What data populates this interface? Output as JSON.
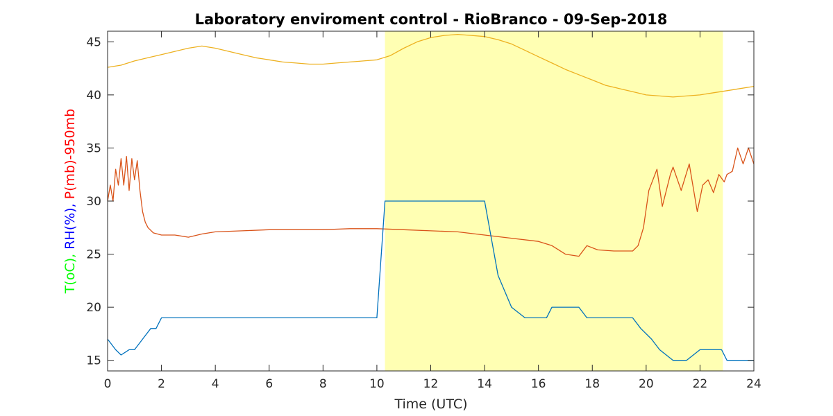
{
  "chart_data": {
    "type": "line",
    "title": "Laboratory enviroment control - RioBranco - 09-Sep-2018",
    "xlabel": "Time (UTC)",
    "ylabel_parts": [
      {
        "text": "T(oC), ",
        "color": "#00ff00"
      },
      {
        "text": "RH(%), ",
        "color": "#0000ff"
      },
      {
        "text": "P(mb)-950mb",
        "color": "#ff0000"
      }
    ],
    "xlim": [
      0,
      24
    ],
    "ylim": [
      14,
      46
    ],
    "x_ticks": [
      0,
      2,
      4,
      6,
      8,
      10,
      12,
      14,
      16,
      18,
      20,
      22,
      24
    ],
    "y_ticks": [
      15,
      20,
      25,
      30,
      35,
      40,
      45
    ],
    "grid": false,
    "highlight": {
      "x_start": 10.3,
      "x_end": 22.85,
      "color": "#ffffb3"
    },
    "series": [
      {
        "color": "#edb120",
        "x": [
          0,
          0.5,
          1,
          1.5,
          2,
          2.5,
          3,
          3.5,
          4,
          4.5,
          5,
          5.5,
          6,
          6.5,
          7,
          7.5,
          8,
          8.5,
          9,
          9.5,
          10,
          10.5,
          11,
          11.5,
          12,
          12.5,
          13,
          13.5,
          14,
          14.5,
          15,
          15.5,
          16,
          16.5,
          17,
          17.5,
          18,
          18.5,
          19,
          19.5,
          20,
          20.5,
          21,
          21.5,
          22,
          22.5,
          23,
          23.5,
          24
        ],
        "y": [
          42.6,
          42.8,
          43.2,
          43.5,
          43.8,
          44.1,
          44.4,
          44.6,
          44.4,
          44.1,
          43.8,
          43.5,
          43.3,
          43.1,
          43.0,
          42.9,
          42.9,
          43.0,
          43.1,
          43.2,
          43.3,
          43.7,
          44.4,
          45.0,
          45.4,
          45.6,
          45.7,
          45.6,
          45.5,
          45.2,
          44.8,
          44.2,
          43.6,
          43.0,
          42.4,
          41.9,
          41.4,
          40.9,
          40.6,
          40.3,
          40.0,
          39.9,
          39.8,
          39.9,
          40.0,
          40.2,
          40.4,
          40.6,
          40.8
        ]
      },
      {
        "color": "#d95319",
        "x": [
          0,
          0.1,
          0.2,
          0.3,
          0.4,
          0.5,
          0.6,
          0.7,
          0.8,
          0.9,
          1.0,
          1.1,
          1.2,
          1.3,
          1.4,
          1.5,
          1.7,
          2.0,
          2.5,
          3.0,
          3.5,
          4.0,
          5.0,
          6.0,
          7.0,
          8.0,
          9.0,
          10.0,
          11.0,
          12.0,
          13.0,
          14.0,
          15.0,
          16.0,
          16.5,
          17.0,
          17.5,
          17.8,
          18.2,
          18.8,
          19.5,
          19.7,
          19.9,
          20.1,
          20.4,
          20.6,
          20.9,
          21.0,
          21.3,
          21.6,
          21.9,
          22.1,
          22.3,
          22.5,
          22.7,
          22.9,
          23.0,
          23.2,
          23.4,
          23.6,
          23.8,
          24.0
        ],
        "y": [
          30.0,
          31.5,
          30.0,
          33.0,
          31.5,
          34.0,
          31.5,
          34.2,
          31.0,
          34.0,
          32.0,
          33.8,
          31.0,
          29.0,
          28.0,
          27.5,
          27.0,
          26.8,
          26.8,
          26.6,
          26.9,
          27.1,
          27.2,
          27.3,
          27.3,
          27.3,
          27.4,
          27.4,
          27.3,
          27.2,
          27.1,
          26.8,
          26.5,
          26.2,
          25.8,
          25.0,
          24.8,
          25.8,
          25.4,
          25.3,
          25.3,
          25.8,
          27.5,
          31.0,
          33.0,
          29.5,
          32.5,
          33.2,
          31.0,
          33.5,
          29.0,
          31.5,
          32.0,
          30.8,
          32.5,
          31.8,
          32.5,
          32.8,
          35.0,
          33.5,
          35.0,
          33.5
        ]
      },
      {
        "color": "#0072bd",
        "x": [
          0,
          0.3,
          0.5,
          0.8,
          1.0,
          1.3,
          1.6,
          1.8,
          2.0,
          2.5,
          3.0,
          3.4,
          3.7,
          4.0,
          4.5,
          5.0,
          5.5,
          6.0,
          6.5,
          7.0,
          7.5,
          8.0,
          8.5,
          9.0,
          9.5,
          10.0,
          10.3,
          10.5,
          11.0,
          11.5,
          12.0,
          12.5,
          13.0,
          13.5,
          14.0,
          14.5,
          15.0,
          15.5,
          16.0,
          16.3,
          16.5,
          17.0,
          17.5,
          17.8,
          18.2,
          18.8,
          19.5,
          19.8,
          20.2,
          20.5,
          21.0,
          21.5,
          22.0,
          22.5,
          22.8,
          23.0,
          23.3,
          23.6,
          24.0
        ],
        "y": [
          17,
          16,
          15.5,
          16,
          16,
          17,
          18,
          18,
          19,
          19,
          19,
          19,
          19,
          19,
          19,
          19,
          19,
          19,
          19,
          19,
          19,
          19,
          19,
          19,
          19,
          19,
          30,
          30,
          30,
          30,
          30,
          30,
          30,
          30,
          30,
          23,
          20,
          19,
          19,
          19,
          20,
          20,
          20,
          19,
          19,
          19,
          19,
          18,
          17,
          16,
          15,
          15,
          16,
          16,
          16,
          15,
          15,
          15,
          15
        ]
      }
    ]
  }
}
